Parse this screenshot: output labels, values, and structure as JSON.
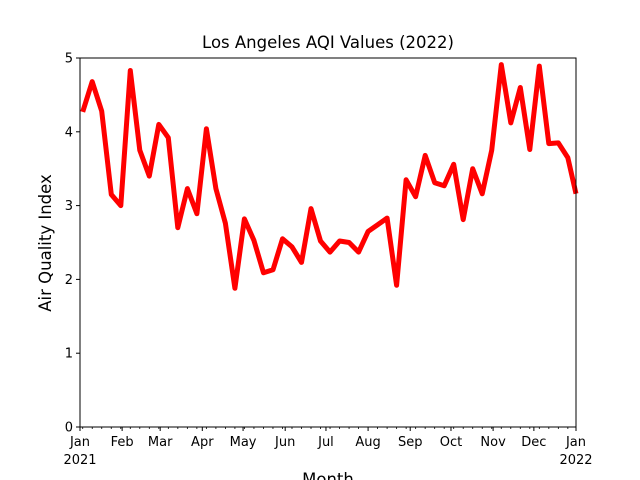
{
  "chart_data": {
    "type": "line",
    "title": "Los Angeles AQI Values (2022)",
    "xlabel": "Month",
    "ylabel": "Air Quality Index",
    "ylim": [
      0,
      5
    ],
    "xlim": [
      "2021-01-01",
      "2022-01-01"
    ],
    "y_ticks": [
      "0",
      "1",
      "2",
      "3",
      "4",
      "5"
    ],
    "x_ticks": [
      {
        "date": "2021-01-01",
        "label": "Jan",
        "sub": "2021"
      },
      {
        "date": "2021-02-01",
        "label": "Feb",
        "sub": ""
      },
      {
        "date": "2021-03-01",
        "label": "Mar",
        "sub": ""
      },
      {
        "date": "2021-04-01",
        "label": "Apr",
        "sub": ""
      },
      {
        "date": "2021-05-01",
        "label": "May",
        "sub": ""
      },
      {
        "date": "2021-06-01",
        "label": "Jun",
        "sub": ""
      },
      {
        "date": "2021-07-01",
        "label": "Jul",
        "sub": ""
      },
      {
        "date": "2021-08-01",
        "label": "Aug",
        "sub": ""
      },
      {
        "date": "2021-09-01",
        "label": "Sep",
        "sub": ""
      },
      {
        "date": "2021-10-01",
        "label": "Oct",
        "sub": ""
      },
      {
        "date": "2021-11-01",
        "label": "Nov",
        "sub": ""
      },
      {
        "date": "2021-12-01",
        "label": "Dec",
        "sub": ""
      },
      {
        "date": "2022-01-01",
        "label": "Jan",
        "sub": "2022"
      }
    ],
    "grid": false,
    "series": [
      {
        "color": "#ff0000",
        "x": [
          "2021-01-03",
          "2021-01-10",
          "2021-01-17",
          "2021-01-24",
          "2021-01-31",
          "2021-02-07",
          "2021-02-14",
          "2021-02-21",
          "2021-02-28",
          "2021-03-07",
          "2021-03-14",
          "2021-03-21",
          "2021-03-28",
          "2021-04-04",
          "2021-04-11",
          "2021-04-18",
          "2021-04-25",
          "2021-05-02",
          "2021-05-09",
          "2021-05-16",
          "2021-05-23",
          "2021-05-30",
          "2021-06-06",
          "2021-06-13",
          "2021-06-20",
          "2021-06-27",
          "2021-07-04",
          "2021-07-11",
          "2021-07-18",
          "2021-07-25",
          "2021-08-01",
          "2021-08-08",
          "2021-08-15",
          "2021-08-22",
          "2021-08-29",
          "2021-09-05",
          "2021-09-12",
          "2021-09-19",
          "2021-09-26",
          "2021-10-03",
          "2021-10-10",
          "2021-10-17",
          "2021-10-24",
          "2021-10-31",
          "2021-11-07",
          "2021-11-14",
          "2021-11-21",
          "2021-11-28",
          "2021-12-05",
          "2021-12-12",
          "2021-12-19",
          "2021-12-26",
          "2022-01-02"
        ],
        "values": [
          4.27,
          4.68,
          4.28,
          3.15,
          3.0,
          4.83,
          3.75,
          3.4,
          4.1,
          3.92,
          2.7,
          3.23,
          2.89,
          4.04,
          3.23,
          2.76,
          1.88,
          2.82,
          2.53,
          2.09,
          2.13,
          2.55,
          2.44,
          2.23,
          2.96,
          2.52,
          2.37,
          2.52,
          2.5,
          2.37,
          2.65,
          2.74,
          2.83,
          1.92,
          3.35,
          3.12,
          3.68,
          3.31,
          3.27,
          3.56,
          2.81,
          3.5,
          3.16,
          3.75,
          4.91,
          4.12,
          4.6,
          3.76,
          4.89,
          3.84,
          3.85,
          3.65,
          3.08
        ]
      }
    ]
  }
}
